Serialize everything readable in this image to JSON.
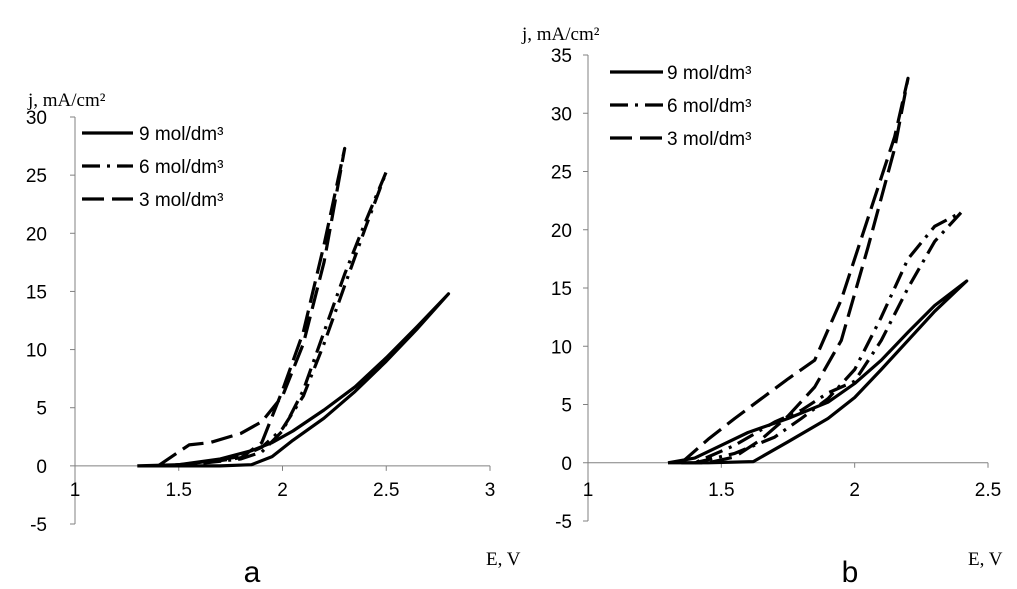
{
  "chart_data": [
    {
      "type": "line",
      "panel_label": "a",
      "ylabel": "j, mA/cm²",
      "xlabel": "E, V",
      "xlim": [
        1,
        3
      ],
      "ylim": [
        -5,
        30
      ],
      "x_ticks": [
        "1",
        "1.5",
        "2",
        "2.5",
        "3"
      ],
      "y_ticks": [
        "-5",
        "0",
        "5",
        "10",
        "15",
        "20",
        "25",
        "30"
      ],
      "grid": false,
      "legend_position": "top-left",
      "series": [
        {
          "name": "9 mol/dm³",
          "dash": "solid",
          "points": [
            [
              1.3,
              0
            ],
            [
              1.5,
              0
            ],
            [
              1.7,
              0
            ],
            [
              1.85,
              0.1
            ],
            [
              1.95,
              0.8
            ],
            [
              2.05,
              2.2
            ],
            [
              2.2,
              4.1
            ],
            [
              2.35,
              6.4
            ],
            [
              2.5,
              9.0
            ],
            [
              2.65,
              11.8
            ],
            [
              2.8,
              14.8
            ],
            [
              2.65,
              12.0
            ],
            [
              2.5,
              9.3
            ],
            [
              2.35,
              6.8
            ],
            [
              2.2,
              4.8
            ],
            [
              2.05,
              3.0
            ],
            [
              1.95,
              2.0
            ],
            [
              1.85,
              1.3
            ],
            [
              1.7,
              0.6
            ],
            [
              1.5,
              0.1
            ],
            [
              1.3,
              0
            ]
          ]
        },
        {
          "name": "6 mol/dm³",
          "dash": "dash-dot",
          "points": [
            [
              1.45,
              0
            ],
            [
              1.6,
              0.2
            ],
            [
              1.8,
              0.6
            ],
            [
              1.9,
              1.2
            ],
            [
              2.0,
              3.0
            ],
            [
              2.1,
              6.5
            ],
            [
              2.2,
              11.5
            ],
            [
              2.3,
              16.5
            ],
            [
              2.4,
              21.0
            ],
            [
              2.5,
              25.3
            ],
            [
              2.4,
              20.5
            ],
            [
              2.3,
              15.5
            ],
            [
              2.2,
              10.5
            ],
            [
              2.1,
              6.0
            ],
            [
              2.0,
              3.2
            ],
            [
              1.9,
              1.6
            ],
            [
              1.8,
              0.8
            ],
            [
              1.6,
              0.3
            ],
            [
              1.45,
              0
            ]
          ]
        },
        {
          "name": "3 mol/dm³",
          "dash": "long-dash",
          "points": [
            [
              1.4,
              0
            ],
            [
              1.55,
              1.8
            ],
            [
              1.65,
              2.0
            ],
            [
              1.8,
              2.8
            ],
            [
              1.9,
              3.8
            ],
            [
              2.0,
              6.0
            ],
            [
              2.1,
              10.5
            ],
            [
              2.2,
              17.5
            ],
            [
              2.3,
              27.3
            ],
            [
              2.2,
              19.0
            ],
            [
              2.1,
              11.5
            ],
            [
              2.0,
              6.5
            ],
            [
              1.9,
              2.0
            ],
            [
              1.8,
              0.7
            ],
            [
              1.6,
              0.2
            ],
            [
              1.4,
              0
            ]
          ]
        }
      ]
    },
    {
      "type": "line",
      "panel_label": "b",
      "ylabel": "j, mA/cm²",
      "xlabel": "E, V",
      "xlim": [
        1,
        2.5
      ],
      "ylim": [
        -5,
        35
      ],
      "x_ticks": [
        "1",
        "1.5",
        "2",
        "2.5"
      ],
      "y_ticks": [
        "-5",
        "0",
        "5",
        "10",
        "15",
        "20",
        "25",
        "30",
        "35"
      ],
      "grid": false,
      "legend_position": "top-left",
      "series": [
        {
          "name": "9 mol/dm³",
          "dash": "solid",
          "points": [
            [
              1.3,
              0
            ],
            [
              1.45,
              0
            ],
            [
              1.62,
              0.1
            ],
            [
              1.75,
              1.8
            ],
            [
              1.9,
              3.8
            ],
            [
              2.0,
              5.6
            ],
            [
              2.1,
              8.0
            ],
            [
              2.2,
              10.5
            ],
            [
              2.3,
              13.0
            ],
            [
              2.42,
              15.6
            ],
            [
              2.3,
              13.5
            ],
            [
              2.2,
              11.2
            ],
            [
              2.1,
              8.8
            ],
            [
              2.0,
              6.8
            ],
            [
              1.9,
              5.2
            ],
            [
              1.75,
              3.8
            ],
            [
              1.6,
              2.6
            ],
            [
              1.5,
              1.5
            ],
            [
              1.4,
              0.4
            ],
            [
              1.3,
              0
            ]
          ]
        },
        {
          "name": "6 mol/dm³",
          "dash": "dash-dot",
          "points": [
            [
              1.4,
              0
            ],
            [
              1.55,
              0.8
            ],
            [
              1.7,
              2.2
            ],
            [
              1.8,
              3.8
            ],
            [
              1.9,
              5.5
            ],
            [
              2.0,
              8.0
            ],
            [
              2.1,
              12.5
            ],
            [
              2.2,
              17.5
            ],
            [
              2.3,
              20.3
            ],
            [
              2.4,
              21.5
            ],
            [
              2.3,
              19.0
            ],
            [
              2.2,
              15.0
            ],
            [
              2.1,
              10.5
            ],
            [
              2.0,
              7.0
            ],
            [
              1.9,
              6.0
            ],
            [
              1.8,
              4.5
            ],
            [
              1.7,
              3.5
            ],
            [
              1.55,
              1.5
            ],
            [
              1.4,
              0
            ]
          ]
        },
        {
          "name": "3 mol/dm³",
          "dash": "long-dash",
          "points": [
            [
              1.35,
              0
            ],
            [
              1.45,
              2.0
            ],
            [
              1.55,
              3.8
            ],
            [
              1.65,
              5.5
            ],
            [
              1.75,
              7.2
            ],
            [
              1.85,
              8.8
            ],
            [
              1.95,
              14.0
            ],
            [
              2.05,
              21.0
            ],
            [
              2.15,
              28.0
            ],
            [
              2.2,
              33.0
            ],
            [
              2.15,
              27.0
            ],
            [
              2.05,
              18.5
            ],
            [
              1.95,
              10.5
            ],
            [
              1.85,
              6.5
            ],
            [
              1.75,
              4.0
            ],
            [
              1.65,
              2.0
            ],
            [
              1.55,
              0.5
            ],
            [
              1.45,
              0
            ],
            [
              1.35,
              0
            ]
          ]
        }
      ]
    }
  ]
}
